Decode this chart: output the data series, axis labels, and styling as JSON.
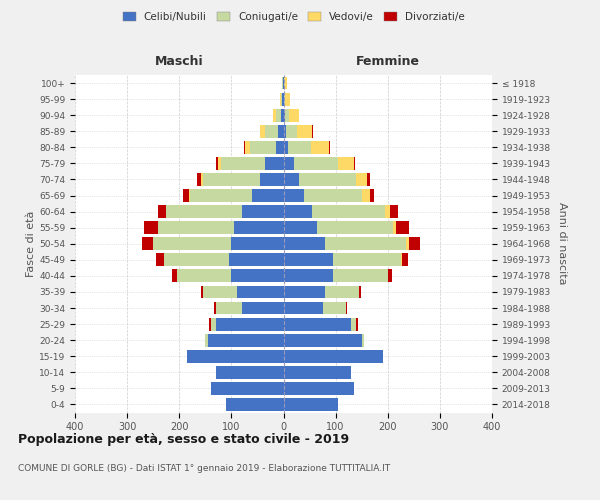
{
  "age_groups": [
    "0-4",
    "5-9",
    "10-14",
    "15-19",
    "20-24",
    "25-29",
    "30-34",
    "35-39",
    "40-44",
    "45-49",
    "50-54",
    "55-59",
    "60-64",
    "65-69",
    "70-74",
    "75-79",
    "80-84",
    "85-89",
    "90-94",
    "95-99",
    "100+"
  ],
  "birth_years": [
    "2014-2018",
    "2009-2013",
    "2004-2008",
    "1999-2003",
    "1994-1998",
    "1989-1993",
    "1984-1988",
    "1979-1983",
    "1974-1978",
    "1969-1973",
    "1964-1968",
    "1959-1963",
    "1954-1958",
    "1949-1953",
    "1944-1948",
    "1939-1943",
    "1934-1938",
    "1929-1933",
    "1924-1928",
    "1919-1923",
    "≤ 1918"
  ],
  "males": {
    "celibi": [
      110,
      140,
      130,
      185,
      145,
      130,
      80,
      90,
      100,
      105,
      100,
      95,
      80,
      60,
      45,
      35,
      15,
      10,
      5,
      2,
      1
    ],
    "coniugati": [
      0,
      0,
      0,
      0,
      5,
      10,
      50,
      65,
      105,
      125,
      150,
      145,
      145,
      120,
      110,
      85,
      50,
      25,
      10,
      3,
      1
    ],
    "vedovi": [
      0,
      0,
      0,
      0,
      0,
      0,
      0,
      0,
      0,
      0,
      0,
      0,
      0,
      2,
      3,
      5,
      8,
      10,
      5,
      2,
      1
    ],
    "divorziati": [
      0,
      0,
      0,
      0,
      0,
      2,
      3,
      4,
      8,
      15,
      22,
      28,
      15,
      10,
      8,
      5,
      2,
      1,
      0,
      0,
      0
    ]
  },
  "females": {
    "nubili": [
      105,
      135,
      130,
      190,
      150,
      130,
      75,
      80,
      95,
      95,
      80,
      65,
      55,
      40,
      30,
      20,
      8,
      5,
      2,
      1,
      0
    ],
    "coniugate": [
      0,
      0,
      0,
      0,
      5,
      10,
      45,
      65,
      105,
      130,
      155,
      145,
      140,
      110,
      110,
      85,
      45,
      20,
      8,
      2,
      1
    ],
    "vedove": [
      0,
      0,
      0,
      0,
      0,
      0,
      0,
      0,
      0,
      2,
      5,
      5,
      10,
      15,
      20,
      30,
      35,
      30,
      20,
      10,
      5
    ],
    "divorziate": [
      0,
      0,
      0,
      0,
      0,
      2,
      2,
      3,
      8,
      12,
      22,
      25,
      15,
      8,
      5,
      3,
      2,
      1,
      0,
      0,
      0
    ]
  },
  "colors": {
    "celibi": "#4472c4",
    "coniugati": "#c5d9a0",
    "vedovi": "#ffd966",
    "divorziati": "#c00000"
  },
  "xlim": 400,
  "title": "Popolazione per età, sesso e stato civile - 2019",
  "subtitle": "COMUNE DI GORLE (BG) - Dati ISTAT 1° gennaio 2019 - Elaborazione TUTTITALIA.IT",
  "ylabel_left": "Fasce di età",
  "ylabel_right": "Anni di nascita",
  "maschi_label": "Maschi",
  "femmine_label": "Femmine",
  "legend_labels": [
    "Celibi/Nubili",
    "Coniugati/e",
    "Vedovi/e",
    "Divorziati/e"
  ],
  "bg_color": "#f0f0f0",
  "plot_bg": "#ffffff"
}
